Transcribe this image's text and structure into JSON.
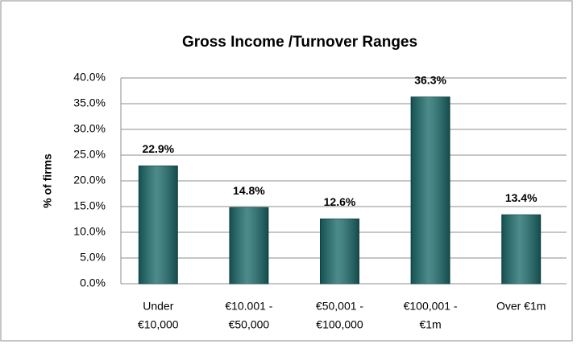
{
  "chart_data": {
    "type": "bar",
    "title": "Gross Income /Turnover Ranges",
    "y_label": "% of firms",
    "categories": [
      [
        "Under",
        "€10,000"
      ],
      [
        "€10.001 -",
        "€50,000"
      ],
      [
        "€50,001 -",
        "€100,000"
      ],
      [
        "€100,001 -",
        "€1m"
      ],
      [
        "Over €1m"
      ]
    ],
    "values": [
      22.9,
      14.8,
      12.6,
      36.3,
      13.4
    ],
    "value_labels": [
      "22.9%",
      "14.8%",
      "12.6%",
      "36.3%",
      "13.4%"
    ],
    "color": "#1b6b6b",
    "ylim": [
      0,
      40
    ],
    "yticks": [
      {
        "value": 0,
        "label": "0.0%"
      },
      {
        "value": 5,
        "label": "5.0%"
      },
      {
        "value": 10,
        "label": "10.0%"
      },
      {
        "value": 15,
        "label": "15.0%"
      },
      {
        "value": 20,
        "label": "20.0%"
      },
      {
        "value": 25,
        "label": "25.0%"
      },
      {
        "value": 30,
        "label": "30.0%"
      },
      {
        "value": 35,
        "label": "35.0%"
      },
      {
        "value": 40,
        "label": "40.0%"
      }
    ],
    "grid": true
  }
}
